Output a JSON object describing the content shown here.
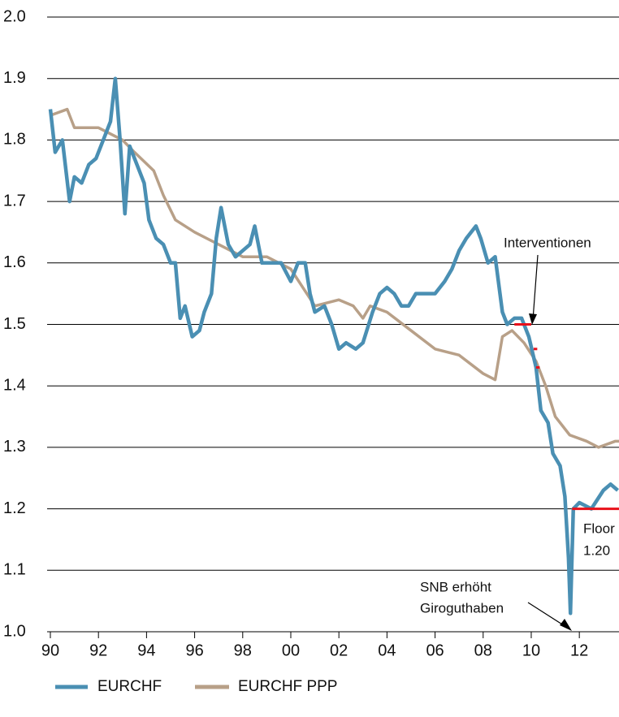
{
  "chart_data": {
    "type": "line",
    "xlim": [
      1990,
      2013.65
    ],
    "ylim": [
      1.0,
      2.0
    ],
    "grid": true,
    "xticks": [
      {
        "value": 1990,
        "label": "90"
      },
      {
        "value": 1992,
        "label": "92"
      },
      {
        "value": 1994,
        "label": "94"
      },
      {
        "value": 1996,
        "label": "96"
      },
      {
        "value": 1998,
        "label": "98"
      },
      {
        "value": 2000,
        "label": "00"
      },
      {
        "value": 2002,
        "label": "02"
      },
      {
        "value": 2004,
        "label": "04"
      },
      {
        "value": 2006,
        "label": "06"
      },
      {
        "value": 2008,
        "label": "08"
      },
      {
        "value": 2010,
        "label": "10"
      },
      {
        "value": 2012,
        "label": "12"
      }
    ],
    "yticks": [
      {
        "value": 1.0,
        "label": "1.0"
      },
      1.1,
      1.2,
      1.3,
      1.4,
      1.5,
      1.6,
      1.7,
      1.8,
      1.9,
      {
        "value": 2.0,
        "label": "2.0"
      }
    ],
    "series": [
      {
        "name": "EURCHF",
        "color": "#4a8fb3",
        "x": [
          1990.0,
          1990.2,
          1990.5,
          1990.8,
          1991.0,
          1991.3,
          1991.6,
          1991.9,
          1992.2,
          1992.5,
          1992.7,
          1992.9,
          1993.1,
          1993.3,
          1993.6,
          1993.9,
          1994.1,
          1994.4,
          1994.7,
          1995.0,
          1995.2,
          1995.4,
          1995.6,
          1995.9,
          1996.2,
          1996.4,
          1996.7,
          1996.9,
          1997.1,
          1997.4,
          1997.7,
          1998.0,
          1998.3,
          1998.5,
          1998.8,
          1999.2,
          1999.6,
          2000.0,
          2000.3,
          2000.6,
          2000.8,
          2001.0,
          2001.4,
          2001.7,
          2002.0,
          2002.3,
          2002.7,
          2003.0,
          2003.4,
          2003.7,
          2004.0,
          2004.3,
          2004.6,
          2004.9,
          2005.2,
          2005.6,
          2006.0,
          2006.4,
          2006.7,
          2007.0,
          2007.3,
          2007.7,
          2007.9,
          2008.2,
          2008.5,
          2008.8,
          2009.0,
          2009.3,
          2009.6,
          2009.9,
          2010.2,
          2010.4,
          2010.7,
          2010.9,
          2011.2,
          2011.4,
          2011.55,
          2011.63,
          2011.75,
          2012.0,
          2012.5,
          2013.0,
          2013.3,
          2013.6
        ],
        "values": [
          1.85,
          1.78,
          1.8,
          1.7,
          1.74,
          1.73,
          1.76,
          1.77,
          1.8,
          1.83,
          1.9,
          1.8,
          1.68,
          1.79,
          1.76,
          1.73,
          1.67,
          1.64,
          1.63,
          1.6,
          1.6,
          1.51,
          1.53,
          1.48,
          1.49,
          1.52,
          1.55,
          1.64,
          1.69,
          1.63,
          1.61,
          1.62,
          1.63,
          1.66,
          1.6,
          1.6,
          1.6,
          1.57,
          1.6,
          1.6,
          1.55,
          1.52,
          1.53,
          1.5,
          1.46,
          1.47,
          1.46,
          1.47,
          1.52,
          1.55,
          1.56,
          1.55,
          1.53,
          1.53,
          1.55,
          1.55,
          1.55,
          1.57,
          1.59,
          1.62,
          1.64,
          1.66,
          1.64,
          1.6,
          1.61,
          1.52,
          1.5,
          1.51,
          1.51,
          1.48,
          1.43,
          1.36,
          1.34,
          1.29,
          1.27,
          1.22,
          1.12,
          1.03,
          1.2,
          1.21,
          1.2,
          1.23,
          1.24,
          1.23
        ]
      },
      {
        "name": "EURCHF PPP",
        "color": "#b8a088",
        "x": [
          1990.0,
          1990.7,
          1991.0,
          1992.0,
          1993.0,
          1993.5,
          1994.3,
          1994.7,
          1995.2,
          1996.0,
          1997.0,
          1998.0,
          1999.0,
          2000.0,
          2000.5,
          2001.0,
          2002.0,
          2002.6,
          2003.0,
          2003.3,
          2004.0,
          2005.0,
          2006.0,
          2007.0,
          2008.0,
          2008.5,
          2008.8,
          2009.2,
          2009.7,
          2010.2,
          2010.6,
          2011.0,
          2011.6,
          2012.3,
          2012.8,
          2013.5,
          2013.65
        ],
        "values": [
          1.84,
          1.85,
          1.82,
          1.82,
          1.8,
          1.78,
          1.75,
          1.71,
          1.67,
          1.65,
          1.63,
          1.61,
          1.61,
          1.59,
          1.56,
          1.53,
          1.54,
          1.53,
          1.51,
          1.53,
          1.52,
          1.49,
          1.46,
          1.45,
          1.42,
          1.41,
          1.48,
          1.49,
          1.47,
          1.44,
          1.4,
          1.35,
          1.32,
          1.31,
          1.3,
          1.31,
          1.31
        ]
      }
    ],
    "levels": [
      {
        "value": 1.5,
        "x": [
          2009.3,
          2010.0
        ]
      },
      {
        "value": 1.46,
        "x": [
          2010.1,
          2010.25
        ]
      },
      {
        "value": 1.43,
        "x": [
          2010.2,
          2010.35
        ]
      },
      {
        "value": 1.2,
        "x": [
          2011.7,
          2013.65
        ]
      }
    ],
    "level_color": "#e8101a",
    "annotations": [
      "Interventionen",
      "Floor",
      "1.20",
      "SNB erhöht",
      "Giroguthaben"
    ]
  }
}
